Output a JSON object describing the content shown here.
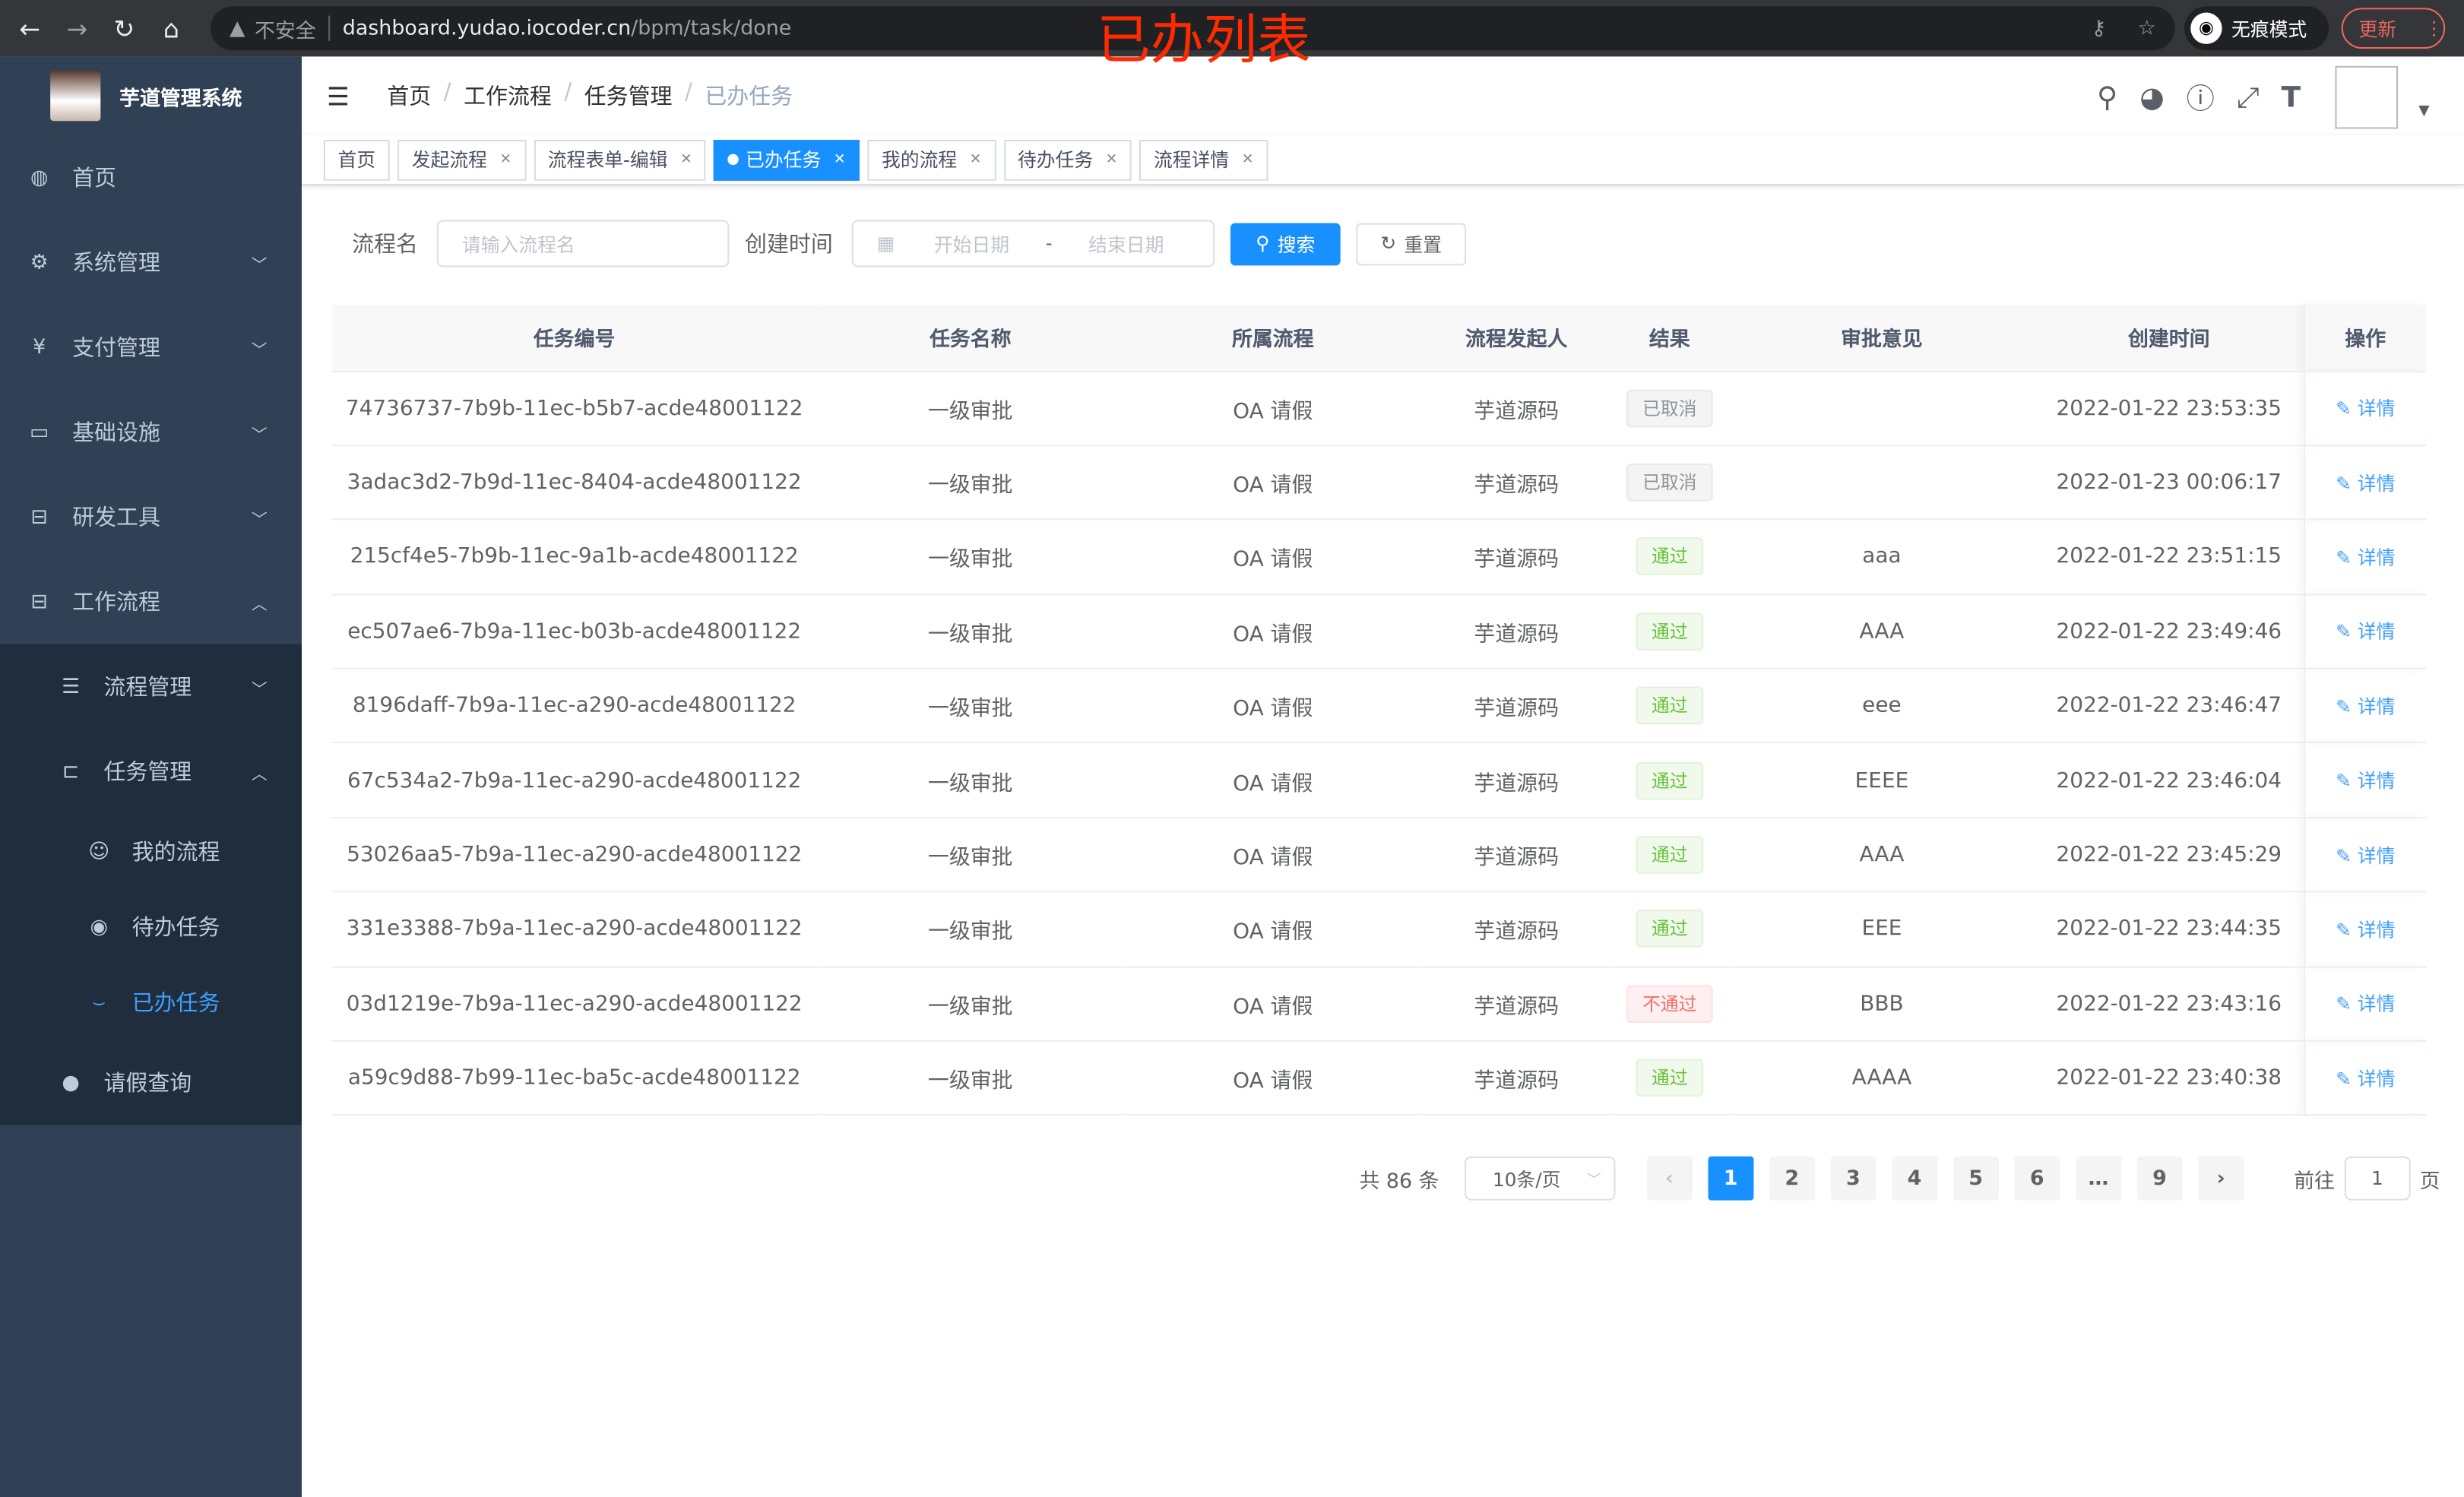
{
  "browser": {
    "security": "不安全",
    "url_host": "dashboard.yudao.iocoder.cn",
    "url_path": "/bpm/task/done",
    "incognito": "无痕模式",
    "update": "更新"
  },
  "annotation": "已办列表",
  "app": {
    "title": "芋道管理系统"
  },
  "sidebar": {
    "items": [
      {
        "label": "首页",
        "icon": "dashboard-icon"
      },
      {
        "label": "系统管理",
        "icon": "gear-icon"
      },
      {
        "label": "支付管理",
        "icon": "yen-icon"
      },
      {
        "label": "基础设施",
        "icon": "monitor-icon"
      },
      {
        "label": "研发工具",
        "icon": "toolbox-icon"
      },
      {
        "label": "工作流程",
        "icon": "toolbox-icon"
      }
    ],
    "workflow_children": [
      {
        "label": "流程管理"
      },
      {
        "label": "任务管理"
      }
    ],
    "task_children": [
      {
        "label": "我的流程"
      },
      {
        "label": "待办任务"
      },
      {
        "label": "已办任务",
        "active": true
      }
    ],
    "leave": {
      "label": "请假查询"
    }
  },
  "breadcrumb": [
    "首页",
    "工作流程",
    "任务管理",
    "已办任务"
  ],
  "tags": [
    {
      "label": "首页"
    },
    {
      "label": "发起流程"
    },
    {
      "label": "流程表单-编辑"
    },
    {
      "label": "已办任务",
      "active": true
    },
    {
      "label": "我的流程"
    },
    {
      "label": "待办任务"
    },
    {
      "label": "流程详情"
    }
  ],
  "search": {
    "name_label": "流程名",
    "name_placeholder": "请输入流程名",
    "time_label": "创建时间",
    "start_placeholder": "开始日期",
    "range_sep": "-",
    "end_placeholder": "结束日期",
    "search_btn": "搜索",
    "reset_btn": "重置"
  },
  "table": {
    "headers": [
      "任务编号",
      "任务名称",
      "所属流程",
      "流程发起人",
      "结果",
      "审批意见",
      "创建时间",
      "操作"
    ],
    "action": "详情",
    "rows": [
      {
        "id": "74736737-7b9b-11ec-b5b7-acde48001122",
        "name": "一级审批",
        "process": "OA 请假",
        "starter": "芋道源码",
        "result": "已取消",
        "type": "cancel",
        "comment": "",
        "time": "2022-01-22 23:53:35"
      },
      {
        "id": "3adac3d2-7b9d-11ec-8404-acde48001122",
        "name": "一级审批",
        "process": "OA 请假",
        "starter": "芋道源码",
        "result": "已取消",
        "type": "cancel",
        "comment": "",
        "time": "2022-01-23 00:06:17"
      },
      {
        "id": "215cf4e5-7b9b-11ec-9a1b-acde48001122",
        "name": "一级审批",
        "process": "OA 请假",
        "starter": "芋道源码",
        "result": "通过",
        "type": "pass",
        "comment": "aaa",
        "time": "2022-01-22 23:51:15"
      },
      {
        "id": "ec507ae6-7b9a-11ec-b03b-acde48001122",
        "name": "一级审批",
        "process": "OA 请假",
        "starter": "芋道源码",
        "result": "通过",
        "type": "pass",
        "comment": "AAA",
        "time": "2022-01-22 23:49:46"
      },
      {
        "id": "8196daff-7b9a-11ec-a290-acde48001122",
        "name": "一级审批",
        "process": "OA 请假",
        "starter": "芋道源码",
        "result": "通过",
        "type": "pass",
        "comment": "eee",
        "time": "2022-01-22 23:46:47"
      },
      {
        "id": "67c534a2-7b9a-11ec-a290-acde48001122",
        "name": "一级审批",
        "process": "OA 请假",
        "starter": "芋道源码",
        "result": "通过",
        "type": "pass",
        "comment": "EEEE",
        "time": "2022-01-22 23:46:04"
      },
      {
        "id": "53026aa5-7b9a-11ec-a290-acde48001122",
        "name": "一级审批",
        "process": "OA 请假",
        "starter": "芋道源码",
        "result": "通过",
        "type": "pass",
        "comment": "AAA",
        "time": "2022-01-22 23:45:29"
      },
      {
        "id": "331e3388-7b9a-11ec-a290-acde48001122",
        "name": "一级审批",
        "process": "OA 请假",
        "starter": "芋道源码",
        "result": "通过",
        "type": "pass",
        "comment": "EEE",
        "time": "2022-01-22 23:44:35"
      },
      {
        "id": "03d1219e-7b9a-11ec-a290-acde48001122",
        "name": "一级审批",
        "process": "OA 请假",
        "starter": "芋道源码",
        "result": "不通过",
        "type": "fail",
        "comment": "BBB",
        "time": "2022-01-22 23:43:16"
      },
      {
        "id": "a59c9d88-7b99-11ec-ba5c-acde48001122",
        "name": "一级审批",
        "process": "OA 请假",
        "starter": "芋道源码",
        "result": "通过",
        "type": "pass",
        "comment": "AAAA",
        "time": "2022-01-22 23:40:38"
      }
    ]
  },
  "pagination": {
    "total": "共 86 条",
    "page_size": "10条/页",
    "pages": [
      "1",
      "2",
      "3",
      "4",
      "5",
      "6",
      "…",
      "9"
    ],
    "current": "1",
    "goto_label": "前往",
    "goto_value": "1",
    "goto_suffix": "页"
  },
  "colors": {
    "sidebar": "#304156",
    "accent": "#1890ff"
  }
}
